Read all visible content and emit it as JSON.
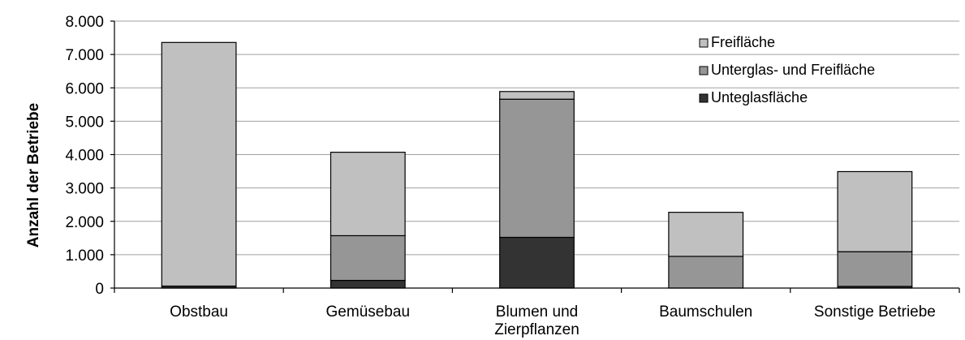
{
  "chart_data": {
    "type": "bar",
    "stacked": true,
    "title": "",
    "xlabel": "",
    "ylabel": "Anzahl der Betriebe",
    "ylim": [
      0,
      8000
    ],
    "yticks": [
      "0",
      "1.000",
      "2.000",
      "3.000",
      "4.000",
      "5.000",
      "6.000",
      "7.000",
      "8.000"
    ],
    "grid": true,
    "legend_position": "top-right",
    "categories": [
      [
        "Obstbau"
      ],
      [
        "Gemüsebau"
      ],
      [
        "Blumen und",
        "Zierpflanzen"
      ],
      [
        "Baumschulen"
      ],
      [
        "Sonstige Betriebe"
      ]
    ],
    "series": [
      {
        "name": "Unteglasfläche",
        "color": "#333333",
        "values": [
          60,
          230,
          1520,
          0,
          50
        ]
      },
      {
        "name": "Unterglas- und Freifläche",
        "color": "#969696",
        "values": [
          0,
          1340,
          4140,
          950,
          1040
        ]
      },
      {
        "name": "Freifläche",
        "color": "#c0c0c0",
        "values": [
          7300,
          2500,
          230,
          1320,
          2400
        ]
      }
    ],
    "legend_order": [
      "Freifläche",
      "Unterglas- und Freifläche",
      "Unteglasfläche"
    ]
  }
}
